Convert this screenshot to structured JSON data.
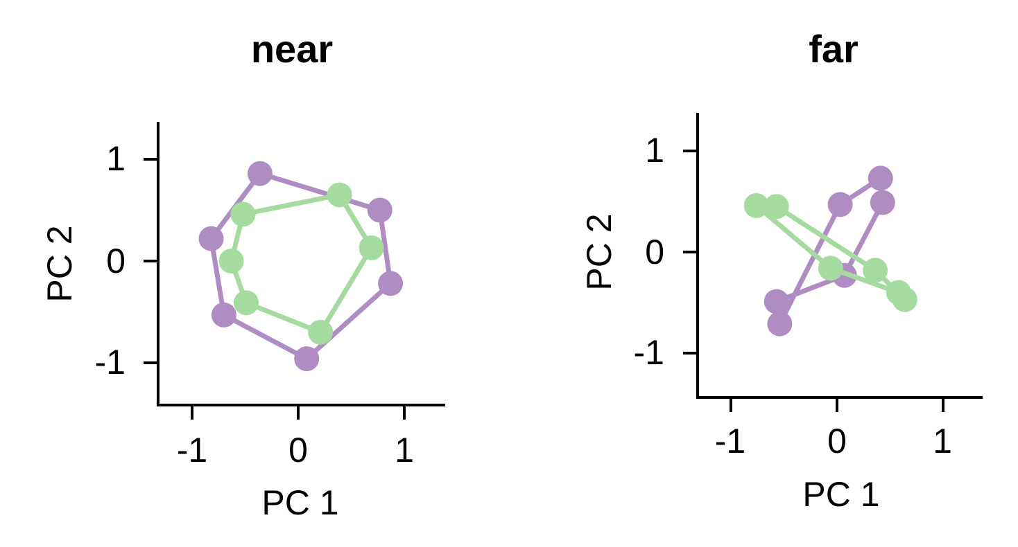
{
  "figure": {
    "background": "#ffffff",
    "axis_color": "#000000"
  },
  "chart_data": [
    {
      "type": "line",
      "title": "near",
      "xlabel": "PC 1",
      "ylabel": "PC 2",
      "x_tick_labels": [
        "-1",
        "0",
        "1"
      ],
      "x_tick_values": [
        -1,
        0,
        1
      ],
      "y_tick_labels": [
        "1",
        "0",
        "-1"
      ],
      "y_tick_values": [
        1,
        0,
        -1
      ],
      "xlim": [
        -1.32,
        1.39
      ],
      "ylim": [
        -1.41,
        1.37
      ],
      "grid": false,
      "legend": "none",
      "series": [
        {
          "name": "purple",
          "color": "#af8dc3",
          "closed": true,
          "points": [
            [
              -0.36,
              0.86
            ],
            [
              0.77,
              0.5
            ],
            [
              0.87,
              -0.22
            ],
            [
              0.08,
              -0.96
            ],
            [
              -0.7,
              -0.53
            ],
            [
              -0.82,
              0.22
            ]
          ]
        },
        {
          "name": "green",
          "color": "#a6dba0",
          "closed": true,
          "points": [
            [
              0.39,
              0.65
            ],
            [
              0.69,
              0.13
            ],
            [
              0.21,
              -0.7
            ],
            [
              -0.49,
              -0.41
            ],
            [
              -0.63,
              0.0
            ],
            [
              -0.52,
              0.46
            ]
          ]
        }
      ]
    },
    {
      "type": "line",
      "title": "far",
      "xlabel": "PC 1",
      "ylabel": "PC 2",
      "x_tick_labels": [
        "-1",
        "0",
        "1"
      ],
      "x_tick_values": [
        -1,
        0,
        1
      ],
      "y_tick_labels": [
        "1",
        "0",
        "-1"
      ],
      "y_tick_values": [
        1,
        0,
        -1
      ],
      "xlim": [
        -1.31,
        1.37
      ],
      "ylim": [
        -1.44,
        1.38
      ],
      "grid": false,
      "legend": "none",
      "series": [
        {
          "name": "purple",
          "color": "#af8dc3",
          "closed": true,
          "points": [
            [
              0.41,
              0.73
            ],
            [
              0.43,
              0.49
            ],
            [
              0.07,
              -0.23
            ],
            [
              -0.57,
              -0.49
            ],
            [
              -0.54,
              -0.71
            ],
            [
              0.03,
              0.47
            ]
          ]
        },
        {
          "name": "green",
          "color": "#a6dba0",
          "closed": true,
          "points": [
            [
              -0.76,
              0.46
            ],
            [
              -0.57,
              0.45
            ],
            [
              0.36,
              -0.18
            ],
            [
              0.64,
              -0.47
            ],
            [
              0.58,
              -0.4
            ],
            [
              -0.06,
              -0.16
            ]
          ]
        }
      ]
    }
  ]
}
